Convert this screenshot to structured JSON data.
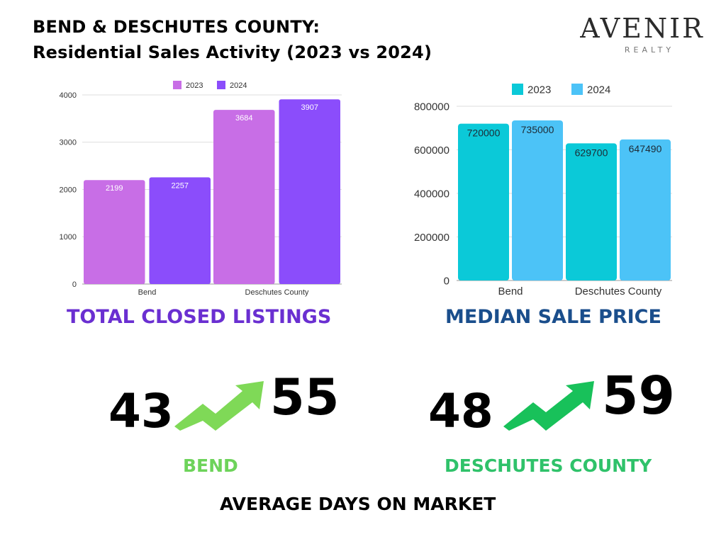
{
  "title": {
    "line1": "BEND & DESCHUTES COUNTY:",
    "line2": "Residential Sales Activity (2023 vs 2024)"
  },
  "logo": {
    "name": "AVENIR",
    "sub": "REALTY"
  },
  "colors": {
    "listings_2023": "#c86ee6",
    "listings_2024": "#8b4dfb",
    "price_2023": "#0bc9d8",
    "price_2024": "#4cc3f7",
    "arrow_bend": "#7fd957",
    "arrow_county": "#18c15a"
  },
  "chart_data": [
    {
      "type": "bar",
      "title": "TOTAL CLOSED LISTINGS",
      "categories": [
        "Bend",
        "Deschutes County"
      ],
      "series": [
        {
          "name": "2023",
          "values": [
            2199,
            3684
          ]
        },
        {
          "name": "2024",
          "values": [
            2257,
            3907
          ]
        }
      ],
      "ylim": [
        0,
        4000
      ],
      "yticks": [
        0,
        1000,
        2000,
        3000,
        4000
      ],
      "grid": true,
      "legend": "top-center"
    },
    {
      "type": "bar",
      "title": "MEDIAN SALE PRICE",
      "categories": [
        "Bend",
        "Deschutes County"
      ],
      "series": [
        {
          "name": "2023",
          "values": [
            720000,
            629700
          ]
        },
        {
          "name": "2024",
          "values": [
            735000,
            647490
          ]
        }
      ],
      "ylim": [
        0,
        800000
      ],
      "yticks": [
        0,
        200000,
        400000,
        600000,
        800000
      ],
      "grid": true,
      "legend": "top-center"
    }
  ],
  "days_on_market": {
    "title": "AVERAGE DAYS ON MARKET",
    "bend": {
      "label": "BEND",
      "from": "43",
      "to": "55"
    },
    "county": {
      "label": "DESCHUTES COUNTY",
      "from": "48",
      "to": "59"
    }
  }
}
